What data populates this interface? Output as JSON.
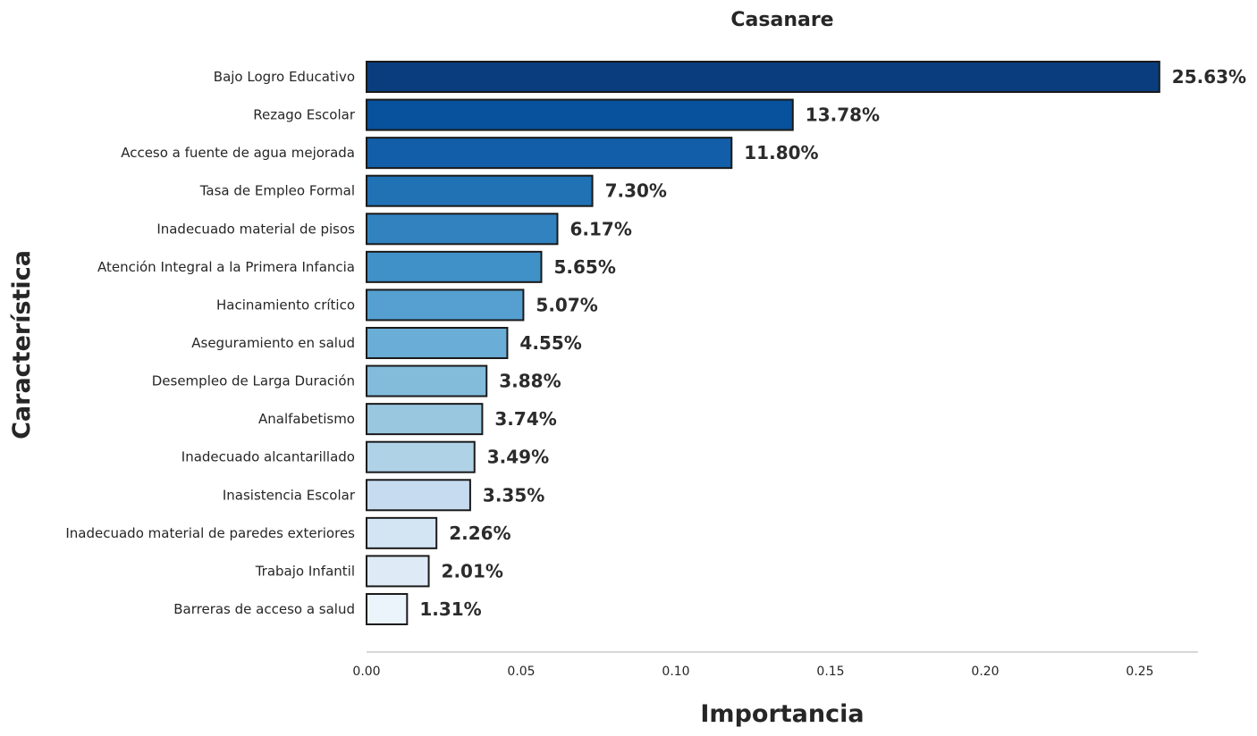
{
  "chart_data": {
    "type": "bar",
    "orientation": "horizontal",
    "title": "Casanare",
    "xlabel": "Importancia",
    "ylabel": "Característica",
    "xlim": [
      0,
      0.27
    ],
    "xticks": [
      "0.00",
      "0.05",
      "0.10",
      "0.15",
      "0.20",
      "0.25"
    ],
    "grid": false,
    "categories": [
      "Bajo Logro Educativo",
      "Rezago Escolar",
      "Acceso a fuente de agua mejorada",
      "Tasa de Empleo Formal",
      "Inadecuado material de pisos",
      "Atención Integral a la Primera Infancia",
      "Hacinamiento crítico",
      "Aseguramiento en salud",
      "Desempleo de Larga Duración",
      "Analfabetismo",
      "Inadecuado alcantarillado",
      "Inasistencia Escolar",
      "Inadecuado material de paredes exteriores",
      "Trabajo Infantil",
      "Barreras de acceso a salud"
    ],
    "values": [
      0.2563,
      0.1378,
      0.118,
      0.073,
      0.0617,
      0.0565,
      0.0507,
      0.0455,
      0.0388,
      0.0374,
      0.0349,
      0.0335,
      0.0226,
      0.0201,
      0.0131
    ],
    "data_labels": [
      "25.63%",
      "13.78%",
      "11.80%",
      "7.30%",
      "6.17%",
      "5.65%",
      "5.07%",
      "4.55%",
      "3.88%",
      "3.74%",
      "3.49%",
      "3.35%",
      "2.26%",
      "2.01%",
      "1.31%"
    ],
    "colors": [
      "#0a3d7e",
      "#08519c",
      "#125ea8",
      "#2171b5",
      "#3282bf",
      "#4191c9",
      "#55a0d0",
      "#6aadd6",
      "#83bbdb",
      "#9ac7e0",
      "#b0d2e7",
      "#c6dbef",
      "#d3e4f3",
      "#deebf7",
      "#ebf3fb"
    ],
    "bar_edge_color": "#1a1a1a"
  }
}
